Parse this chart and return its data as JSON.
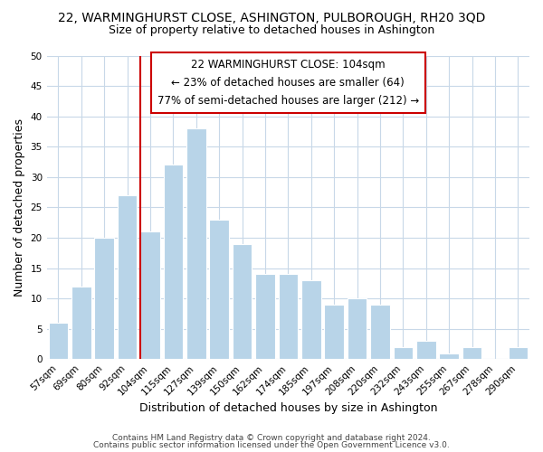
{
  "title": "22, WARMINGHURST CLOSE, ASHINGTON, PULBOROUGH, RH20 3QD",
  "subtitle": "Size of property relative to detached houses in Ashington",
  "xlabel": "Distribution of detached houses by size in Ashington",
  "ylabel": "Number of detached properties",
  "bin_labels": [
    "57sqm",
    "69sqm",
    "80sqm",
    "92sqm",
    "104sqm",
    "115sqm",
    "127sqm",
    "139sqm",
    "150sqm",
    "162sqm",
    "174sqm",
    "185sqm",
    "197sqm",
    "208sqm",
    "220sqm",
    "232sqm",
    "243sqm",
    "255sqm",
    "267sqm",
    "278sqm",
    "290sqm"
  ],
  "bar_heights": [
    6,
    12,
    20,
    27,
    21,
    32,
    38,
    23,
    19,
    14,
    14,
    13,
    9,
    10,
    9,
    2,
    3,
    1,
    2,
    0,
    2
  ],
  "highlight_index": 4,
  "bar_color_normal": "#b8d4e8",
  "bar_edge_color": "#ffffff",
  "annotation_line1": "22 WARMINGHURST CLOSE: 104sqm",
  "annotation_line2": "← 23% of detached houses are smaller (64)",
  "annotation_line3": "77% of semi-detached houses are larger (212) →",
  "annotation_box_edge_color": "#cc0000",
  "annotation_box_face_color": "#ffffff",
  "vline_color": "#cc0000",
  "vline_x_index": 4,
  "ylim": [
    0,
    50
  ],
  "yticks": [
    0,
    5,
    10,
    15,
    20,
    25,
    30,
    35,
    40,
    45,
    50
  ],
  "footer_line1": "Contains HM Land Registry data © Crown copyright and database right 2024.",
  "footer_line2": "Contains public sector information licensed under the Open Government Licence v3.0.",
  "background_color": "#ffffff",
  "grid_color": "#c8d8e8",
  "title_fontsize": 10,
  "subtitle_fontsize": 9,
  "axis_label_fontsize": 9,
  "tick_fontsize": 7.5,
  "annotation_fontsize": 8.5,
  "footer_fontsize": 6.5
}
